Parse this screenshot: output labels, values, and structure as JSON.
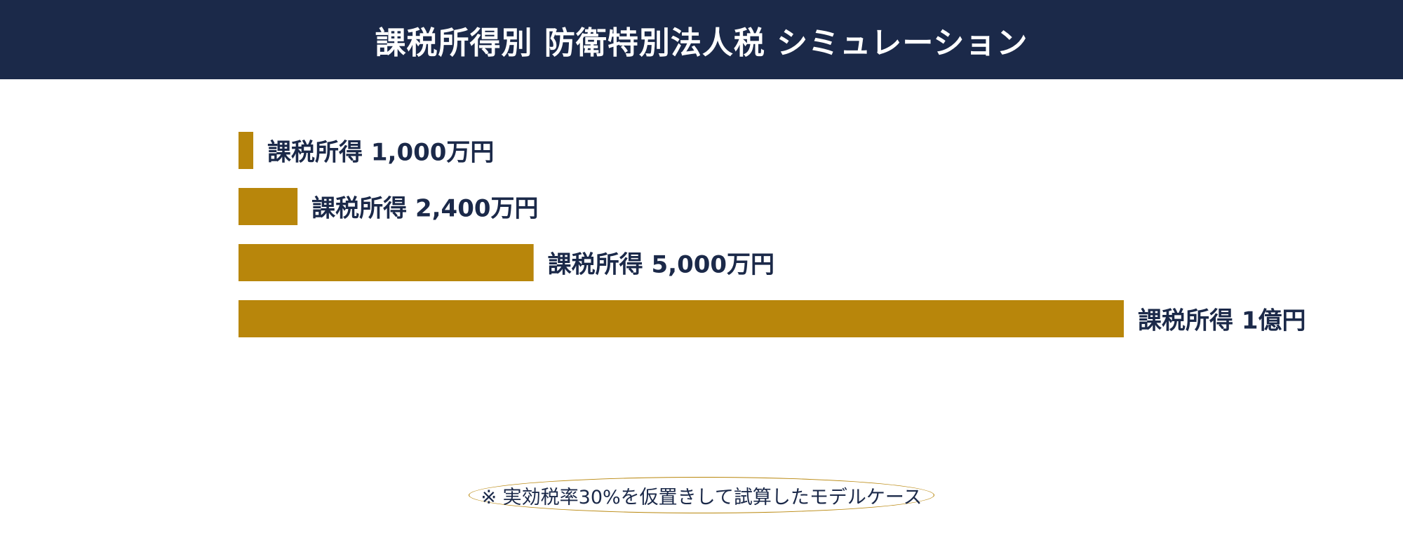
{
  "header": {
    "title": "課税所得別 防衛特別法人税 シミュレーション"
  },
  "colors": {
    "header_bg": "#1b2949",
    "bar": "#b8860b",
    "label": "#1b2949"
  },
  "chart_data": {
    "type": "bar",
    "orientation": "horizontal",
    "title": "課税所得別 防衛特別法人税 シミュレーション",
    "categories": [
      "課税所得 1,000万円",
      "課税所得 2,400万円",
      "課税所得 5,000万円",
      "課税所得 1億円"
    ],
    "values": [
      25,
      100,
      500,
      1500
    ],
    "xlabel": "",
    "ylabel": "",
    "grid": false,
    "legend": "none"
  },
  "footnote": {
    "text": "※ 実効税率30%を仮置きして試算したモデルケース"
  }
}
